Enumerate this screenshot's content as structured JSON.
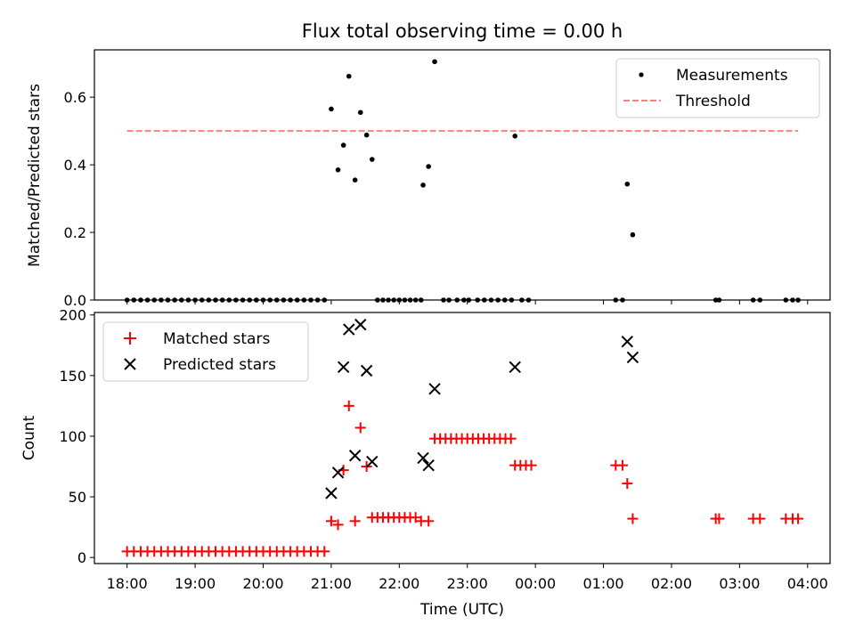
{
  "title": "Flux total observing time = 0.00 h",
  "xlabel": "Time (UTC)",
  "x_ticks": [
    "18:00",
    "19:00",
    "20:00",
    "21:00",
    "22:00",
    "23:00",
    "00:00",
    "01:00",
    "02:00",
    "03:00",
    "04:00"
  ],
  "colors": {
    "measurement": "#000000",
    "threshold": "#ff7f7f",
    "matched": "#ff0000",
    "predicted": "#000000"
  },
  "chart_data": [
    {
      "type": "scatter",
      "ylabel": "Matched/Predicted stars",
      "ylim": [
        0,
        0.74
      ],
      "xlim_hours": [
        17.52,
        28.33
      ],
      "y_ticks": [
        0.0,
        0.2,
        0.4,
        0.6
      ],
      "legend_position": "top-right",
      "series": [
        {
          "name": "Measurements",
          "marker": "dot",
          "points": [
            [
              18.0,
              0
            ],
            [
              18.1,
              0
            ],
            [
              18.2,
              0
            ],
            [
              18.3,
              0
            ],
            [
              18.4,
              0
            ],
            [
              18.5,
              0
            ],
            [
              18.6,
              0
            ],
            [
              18.7,
              0
            ],
            [
              18.8,
              0
            ],
            [
              18.9,
              0
            ],
            [
              19.0,
              0
            ],
            [
              19.1,
              0
            ],
            [
              19.2,
              0
            ],
            [
              19.3,
              0
            ],
            [
              19.4,
              0
            ],
            [
              19.5,
              0
            ],
            [
              19.6,
              0
            ],
            [
              19.7,
              0
            ],
            [
              19.8,
              0
            ],
            [
              19.9,
              0
            ],
            [
              20.0,
              0
            ],
            [
              20.1,
              0
            ],
            [
              20.2,
              0
            ],
            [
              20.3,
              0
            ],
            [
              20.4,
              0
            ],
            [
              20.5,
              0
            ],
            [
              20.6,
              0
            ],
            [
              20.7,
              0
            ],
            [
              20.8,
              0
            ],
            [
              20.9,
              0
            ],
            [
              21.0,
              0.565
            ],
            [
              21.1,
              0.385
            ],
            [
              21.18,
              0.458
            ],
            [
              21.26,
              0.662
            ],
            [
              21.35,
              0.355
            ],
            [
              21.43,
              0.555
            ],
            [
              21.52,
              0.488
            ],
            [
              21.6,
              0.416
            ],
            [
              21.68,
              0
            ],
            [
              21.76,
              0
            ],
            [
              21.84,
              0
            ],
            [
              21.92,
              0
            ],
            [
              22.0,
              0
            ],
            [
              22.08,
              0
            ],
            [
              22.16,
              0
            ],
            [
              22.24,
              0
            ],
            [
              22.32,
              0
            ],
            [
              22.35,
              0.34
            ],
            [
              22.43,
              0.395
            ],
            [
              22.52,
              0.705
            ],
            [
              22.65,
              0
            ],
            [
              22.73,
              0
            ],
            [
              22.85,
              0
            ],
            [
              22.95,
              0
            ],
            [
              23.02,
              0
            ],
            [
              23.15,
              0
            ],
            [
              23.25,
              0
            ],
            [
              23.35,
              0
            ],
            [
              23.45,
              0
            ],
            [
              23.55,
              0
            ],
            [
              23.65,
              0
            ],
            [
              23.7,
              0.485
            ],
            [
              23.8,
              0
            ],
            [
              23.9,
              0
            ],
            [
              25.18,
              0
            ],
            [
              25.28,
              0
            ],
            [
              25.35,
              0.343
            ],
            [
              25.43,
              0.193
            ],
            [
              26.65,
              0
            ],
            [
              26.7,
              0
            ],
            [
              27.2,
              0
            ],
            [
              27.3,
              0
            ],
            [
              27.68,
              0
            ],
            [
              27.78,
              0
            ],
            [
              27.86,
              0
            ]
          ]
        },
        {
          "name": "Threshold",
          "style": "dashed",
          "points": [
            [
              18.0,
              0.5
            ],
            [
              27.86,
              0.5
            ]
          ]
        }
      ]
    },
    {
      "type": "scatter",
      "ylabel": "Count",
      "ylim": [
        -5,
        202
      ],
      "xlim_hours": [
        17.52,
        28.33
      ],
      "y_ticks": [
        0,
        50,
        100,
        150,
        200
      ],
      "legend_position": "top-left",
      "series": [
        {
          "name": "Matched stars",
          "marker": "plus",
          "points": [
            [
              18.0,
              5
            ],
            [
              18.1,
              5
            ],
            [
              18.2,
              5
            ],
            [
              18.3,
              5
            ],
            [
              18.4,
              5
            ],
            [
              18.5,
              5
            ],
            [
              18.6,
              5
            ],
            [
              18.7,
              5
            ],
            [
              18.8,
              5
            ],
            [
              18.9,
              5
            ],
            [
              19.0,
              5
            ],
            [
              19.1,
              5
            ],
            [
              19.2,
              5
            ],
            [
              19.3,
              5
            ],
            [
              19.4,
              5
            ],
            [
              19.5,
              5
            ],
            [
              19.6,
              5
            ],
            [
              19.7,
              5
            ],
            [
              19.8,
              5
            ],
            [
              19.9,
              5
            ],
            [
              20.0,
              5
            ],
            [
              20.1,
              5
            ],
            [
              20.2,
              5
            ],
            [
              20.3,
              5
            ],
            [
              20.4,
              5
            ],
            [
              20.5,
              5
            ],
            [
              20.6,
              5
            ],
            [
              20.7,
              5
            ],
            [
              20.8,
              5
            ],
            [
              20.9,
              5
            ],
            [
              21.0,
              30
            ],
            [
              21.1,
              27
            ],
            [
              21.18,
              72
            ],
            [
              21.26,
              125
            ],
            [
              21.35,
              30
            ],
            [
              21.43,
              107
            ],
            [
              21.52,
              75
            ],
            [
              21.6,
              33
            ],
            [
              21.68,
              33
            ],
            [
              21.76,
              33
            ],
            [
              21.84,
              33
            ],
            [
              21.92,
              33
            ],
            [
              22.0,
              33
            ],
            [
              22.08,
              33
            ],
            [
              22.16,
              33
            ],
            [
              22.24,
              33
            ],
            [
              22.32,
              30
            ],
            [
              22.43,
              30
            ],
            [
              22.52,
              98
            ],
            [
              22.6,
              98
            ],
            [
              22.68,
              98
            ],
            [
              22.76,
              98
            ],
            [
              22.84,
              98
            ],
            [
              22.92,
              98
            ],
            [
              23.0,
              98
            ],
            [
              23.08,
              98
            ],
            [
              23.16,
              98
            ],
            [
              23.24,
              98
            ],
            [
              23.32,
              98
            ],
            [
              23.4,
              98
            ],
            [
              23.48,
              98
            ],
            [
              23.56,
              98
            ],
            [
              23.64,
              98
            ],
            [
              23.7,
              76
            ],
            [
              23.78,
              76
            ],
            [
              23.86,
              76
            ],
            [
              23.94,
              76
            ],
            [
              25.18,
              76
            ],
            [
              25.28,
              76
            ],
            [
              25.35,
              61
            ],
            [
              25.43,
              32
            ],
            [
              26.65,
              32
            ],
            [
              26.7,
              32
            ],
            [
              27.2,
              32
            ],
            [
              27.3,
              32
            ],
            [
              27.68,
              32
            ],
            [
              27.78,
              32
            ],
            [
              27.86,
              32
            ]
          ]
        },
        {
          "name": "Predicted stars",
          "marker": "x",
          "points": [
            [
              21.0,
              53
            ],
            [
              21.1,
              70
            ],
            [
              21.18,
              157
            ],
            [
              21.26,
              188
            ],
            [
              21.35,
              84
            ],
            [
              21.43,
              192
            ],
            [
              21.52,
              154
            ],
            [
              21.6,
              79
            ],
            [
              22.35,
              82
            ],
            [
              22.43,
              76
            ],
            [
              22.52,
              139
            ],
            [
              23.7,
              157
            ],
            [
              25.35,
              178
            ],
            [
              25.43,
              165
            ]
          ]
        }
      ]
    }
  ]
}
